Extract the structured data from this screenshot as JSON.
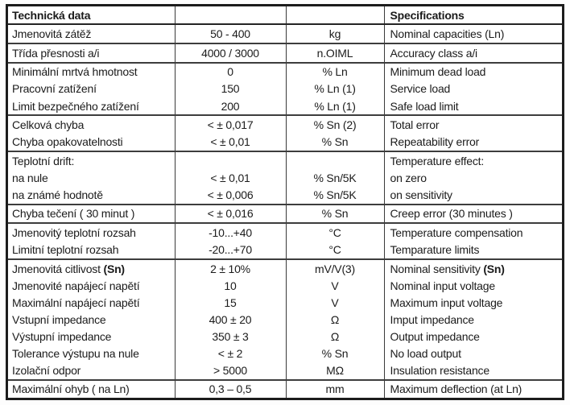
{
  "header": {
    "title_cs": "Technická data",
    "title_en": "Specifications"
  },
  "rows": [
    {
      "cs": "Jmenovitá zátěž",
      "value": "50 - 400",
      "unit": "kg",
      "en": "Nominal capacities (Ln)"
    },
    {
      "cs": "Třída přesnosti a/i",
      "value": "4000 / 3000",
      "unit": "n.OIML",
      "en": "Accuracy class a/i"
    },
    {
      "cs": "Minimální mrtvá hmotnost",
      "value": "0",
      "unit": "% Ln",
      "en": "Minimum dead load"
    },
    {
      "cs": "Pracovní zatížení",
      "value": "150",
      "unit": "% Ln (1)",
      "en": "Service load"
    },
    {
      "cs": "Limit bezpečného zatížení",
      "value": "200",
      "unit": "% Ln (1)",
      "en": "Safe load limit"
    },
    {
      "cs": "Celková chyba",
      "value": "< ± 0,017",
      "unit": "% Sn (2)",
      "en": "Total error"
    },
    {
      "cs": "Chyba opakovatelnosti",
      "value": "< ± 0,01",
      "unit": "% Sn",
      "en": "Repeatability error"
    },
    {
      "cs": "Teplotní drift:",
      "value": "",
      "unit": "",
      "en": "Temperature effect:"
    },
    {
      "cs": "na nule",
      "value": "< ± 0,01",
      "unit": "% Sn/5K",
      "en": "on zero"
    },
    {
      "cs": "na známé hodnotě",
      "value": "< ± 0,006",
      "unit": "% Sn/5K",
      "en": "on sensitivity"
    },
    {
      "cs": "Chyba tečení ( 30 minut )",
      "value": "< ± 0,016",
      "unit": "% Sn",
      "en": "Creep error (30 minutes )"
    },
    {
      "cs": "Jmenovitý teplotní rozsah",
      "value": "-10...+40",
      "unit": "°C",
      "en": "Temperature compensation"
    },
    {
      "cs": "Limitní teplotní rozsah",
      "value": "-20...+70",
      "unit": "°C",
      "en": "Temparature limits"
    },
    {
      "cs": "Jmenovitá citlivost ",
      "cs_bold": "(Sn)",
      "value": "2 ± 10%",
      "unit": "mV/V(3)",
      "en": "Nominal sensitivity ",
      "en_bold": "(Sn)"
    },
    {
      "cs": "Jmenovité napájecí napětí",
      "value": "10",
      "unit": "V",
      "en": "Nominal input voltage"
    },
    {
      "cs": "Maximální napájecí napětí",
      "value": "15",
      "unit": "V",
      "en": "Maximum input voltage"
    },
    {
      "cs": "Vstupní impedance",
      "value": "400 ± 20",
      "unit": "Ω",
      "en": "Imput impedance"
    },
    {
      "cs": "Výstupní impedance",
      "value": "350 ± 3",
      "unit": "Ω",
      "en": "Output impedance"
    },
    {
      "cs": "Tolerance výstupu na nule",
      "value": "< ± 2",
      "unit": "% Sn",
      "en": "No load output"
    },
    {
      "cs": "Izolační odpor",
      "value": "> 5000",
      "unit": "MΩ",
      "en": "Insulation resistance"
    },
    {
      "cs": "Maximální ohyb ( na Ln)",
      "value": "0,3 – 0,5",
      "unit": "mm",
      "en": "Maximum deflection (at Ln)"
    }
  ]
}
